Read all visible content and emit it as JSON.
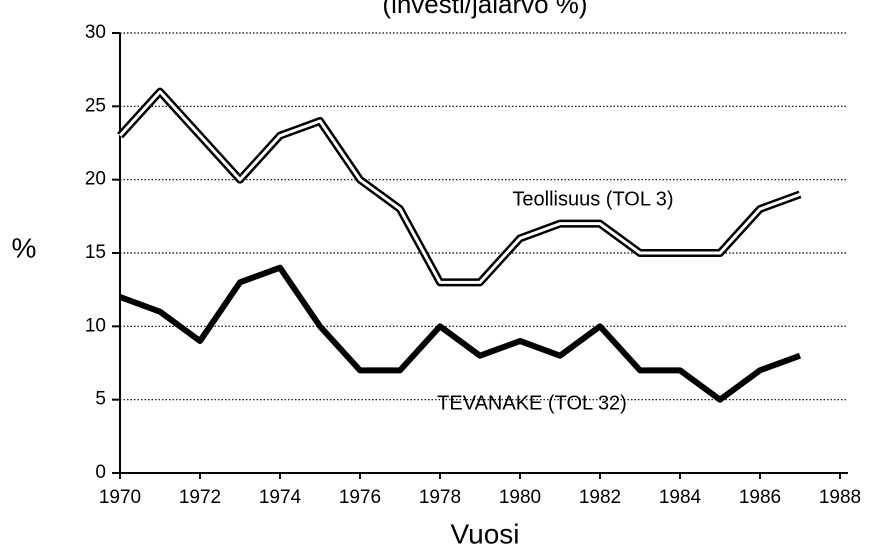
{
  "chart_data": {
    "type": "line",
    "title": "(investi/jalarvo %)",
    "x_label": "Vuosi",
    "y_label": "%",
    "x": [
      1970,
      1971,
      1972,
      1973,
      1974,
      1975,
      1976,
      1977,
      1978,
      1979,
      1980,
      1981,
      1982,
      1983,
      1984,
      1985,
      1986,
      1987
    ],
    "series": [
      {
        "name": "Teollisuus (TOL 3)",
        "color": "#000000",
        "style": "double",
        "values": [
          23,
          26,
          23,
          20,
          23,
          24,
          20,
          18,
          13,
          13,
          16,
          17,
          17,
          15,
          15,
          15,
          18,
          19
        ]
      },
      {
        "name": "TEVANAKE (TOL 32)",
        "color": "#000000",
        "style": "solid",
        "values": [
          12,
          11,
          9,
          13,
          14,
          10,
          7,
          7,
          10,
          8,
          9,
          8,
          10,
          7,
          7,
          5,
          7,
          8
        ]
      }
    ],
    "xlim": [
      1970,
      1988
    ],
    "xticks": [
      1970,
      1972,
      1974,
      1976,
      1978,
      1980,
      1982,
      1984,
      1986,
      1988
    ],
    "ylim": [
      0,
      30
    ],
    "yticks": [
      0,
      5,
      10,
      15,
      20,
      25,
      30
    ],
    "grid": true
  }
}
